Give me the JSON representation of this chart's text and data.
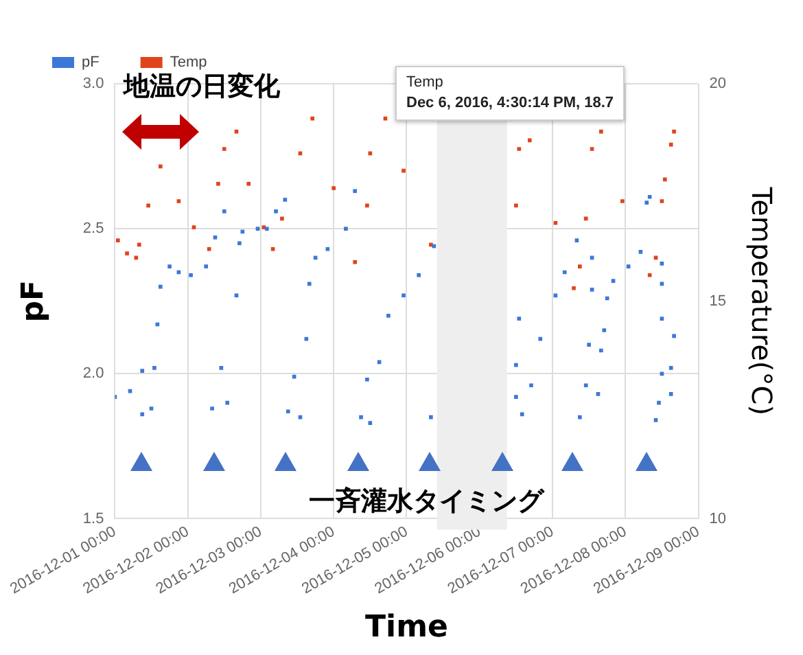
{
  "chart_data": {
    "type": "scatter",
    "xlabel": "Time",
    "ylabel": "pF",
    "y2label": "Temperature(°C)",
    "xlim": [
      "2016-12-01T00:00",
      "2016-12-09T00:00"
    ],
    "xticks": [
      {
        "value": "2016-12-01T00:00",
        "label": "2016-12-01 00:00"
      },
      {
        "value": "2016-12-02T00:00",
        "label": "2016-12-02 00:00"
      },
      {
        "value": "2016-12-03T00:00",
        "label": "2016-12-03 00:00"
      },
      {
        "value": "2016-12-04T00:00",
        "label": "2016-12-04 00:00"
      },
      {
        "value": "2016-12-05T00:00",
        "label": "2016-12-05 00:00"
      },
      {
        "value": "2016-12-06T00:00",
        "label": "2016-12-06 00:00"
      },
      {
        "value": "2016-12-07T00:00",
        "label": "2016-12-07 00:00"
      },
      {
        "value": "2016-12-08T00:00",
        "label": "2016-12-08 00:00"
      },
      {
        "value": "2016-12-09T00:00",
        "label": "2016-12-09 00:00"
      }
    ],
    "ylim": [
      1.5,
      3.0
    ],
    "yticks": [
      1.5,
      {
        "value": 2,
        "label": "2.0"
      },
      2.5,
      {
        "value": 3,
        "label": "3.0"
      }
    ],
    "y2lim": [
      10,
      20
    ],
    "y2ticks": [
      10,
      15,
      20
    ],
    "grid": true,
    "legend": "top left",
    "marker": "square",
    "bands": [
      {
        "axis": "x",
        "from": "2016-12-05T10:00",
        "to": "2016-12-06T09:00",
        "color": "#eeeeee"
      }
    ],
    "annotations": [
      "地温の日変化",
      "一斉灌水タイミング",
      "Temp",
      "Dec 6, 2016, 4:30:14 PM, 18.7"
    ],
    "series": [
      {
        "name": "pF",
        "color": "#3c78d8",
        "x": [
          "2016-12-01T00:00",
          "2016-12-01T05:00",
          "2016-12-01T09:00",
          "2016-12-01T09:00",
          "2016-12-01T12:00",
          "2016-12-01T13:00",
          "2016-12-01T14:00",
          "2016-12-01T15:00",
          "2016-12-01T18:00",
          "2016-12-01T21:00",
          "2016-12-02T01:00",
          "2016-12-02T06:00",
          "2016-12-02T09:00",
          "2016-12-02T12:00",
          "2016-12-02T08:00",
          "2016-12-02T11:00",
          "2016-12-02T13:00",
          "2016-12-02T16:00",
          "2016-12-02T17:00",
          "2016-12-02T18:00",
          "2016-12-02T23:00",
          "2016-12-03T02:00",
          "2016-12-03T05:00",
          "2016-12-03T08:00",
          "2016-12-03T09:00",
          "2016-12-03T11:00",
          "2016-12-03T13:00",
          "2016-12-03T15:00",
          "2016-12-03T16:00",
          "2016-12-03T18:00",
          "2016-12-03T22:00",
          "2016-12-04T04:00",
          "2016-12-04T07:00",
          "2016-12-04T09:00",
          "2016-12-04T11:00",
          "2016-12-04T12:00",
          "2016-12-04T15:00",
          "2016-12-04T18:00",
          "2016-12-04T23:00",
          "2016-12-05T04:00",
          "2016-12-05T09:00",
          "2016-12-05T08:00",
          "2016-12-06T13:00",
          "2016-12-06T12:00",
          "2016-12-06T12:00",
          "2016-12-06T14:00",
          "2016-12-06T17:00",
          "2016-12-06T20:00",
          "2016-12-07T01:00",
          "2016-12-07T04:00",
          "2016-12-07T08:00",
          "2016-12-07T13:00",
          "2016-12-07T13:00",
          "2016-12-07T12:00",
          "2016-12-07T11:00",
          "2016-12-07T09:00",
          "2016-12-07T15:00",
          "2016-12-07T16:00",
          "2016-12-07T17:00",
          "2016-12-07T18:00",
          "2016-12-07T20:00",
          "2016-12-08T01:00",
          "2016-12-08T05:00",
          "2016-12-08T07:00",
          "2016-12-08T08:00",
          "2016-12-08T12:00",
          "2016-12-08T12:00",
          "2016-12-08T12:00",
          "2016-12-08T12:00",
          "2016-12-08T11:00",
          "2016-12-08T10:00",
          "2016-12-08T15:00",
          "2016-12-08T15:00",
          "2016-12-08T16:00"
        ],
        "values": [
          1.92,
          1.94,
          2.01,
          1.86,
          1.88,
          2.02,
          2.17,
          2.3,
          2.37,
          2.35,
          2.34,
          2.37,
          2.47,
          2.56,
          1.88,
          2.02,
          1.9,
          2.27,
          2.45,
          2.49,
          2.5,
          2.5,
          2.56,
          2.6,
          1.87,
          1.99,
          1.85,
          2.12,
          2.31,
          2.4,
          2.43,
          2.5,
          2.63,
          1.85,
          1.98,
          1.83,
          2.04,
          2.2,
          2.27,
          2.34,
          2.44,
          1.85,
          2.19,
          2.03,
          1.92,
          1.86,
          1.96,
          2.12,
          2.27,
          2.35,
          2.46,
          2.4,
          2.29,
          2.1,
          1.96,
          1.85,
          1.93,
          2.08,
          2.15,
          2.26,
          2.32,
          2.37,
          2.42,
          2.59,
          2.61,
          2.38,
          2.31,
          2.19,
          2.0,
          1.9,
          1.84,
          1.93,
          2.02,
          2.13
        ]
      },
      {
        "name": "Temp",
        "color": "#e0441c",
        "axis": "y2",
        "x": [
          "2016-12-01T01:00",
          "2016-12-01T04:00",
          "2016-12-01T07:00",
          "2016-12-01T08:00",
          "2016-12-01T11:00",
          "2016-12-01T15:00",
          "2016-12-01T21:00",
          "2016-12-02T02:00",
          "2016-12-02T07:00",
          "2016-12-02T10:00",
          "2016-12-02T12:00",
          "2016-12-02T16:00",
          "2016-12-02T20:00",
          "2016-12-03T01:00",
          "2016-12-03T04:00",
          "2016-12-03T07:00",
          "2016-12-03T13:00",
          "2016-12-03T17:00",
          "2016-12-04T00:00",
          "2016-12-04T07:00",
          "2016-12-04T11:00",
          "2016-12-04T12:00",
          "2016-12-04T17:00",
          "2016-12-04T23:00",
          "2016-12-05T08:00",
          "2016-12-06T12:00",
          "2016-12-06T13:00",
          "2016-12-06T16:30",
          "2016-12-07T01:00",
          "2016-12-07T07:00",
          "2016-12-07T09:00",
          "2016-12-07T11:00",
          "2016-12-07T13:00",
          "2016-12-07T16:00",
          "2016-12-07T23:00",
          "2016-12-08T08:00",
          "2016-12-08T10:00",
          "2016-12-08T12:00",
          "2016-12-08T13:00",
          "2016-12-08T15:00",
          "2016-12-08T16:00"
        ],
        "values": [
          16.4,
          16.1,
          16.0,
          16.3,
          17.2,
          18.1,
          17.3,
          16.7,
          16.2,
          17.7,
          18.5,
          18.9,
          17.7,
          16.7,
          16.2,
          16.9,
          18.4,
          19.2,
          17.6,
          15.9,
          17.2,
          18.4,
          19.2,
          18.0,
          16.3,
          17.2,
          18.5,
          18.7,
          16.8,
          15.3,
          15.8,
          16.9,
          18.5,
          18.9,
          17.3,
          15.6,
          16.0,
          17.3,
          17.8,
          18.6,
          18.9
        ]
      }
    ]
  }
}
